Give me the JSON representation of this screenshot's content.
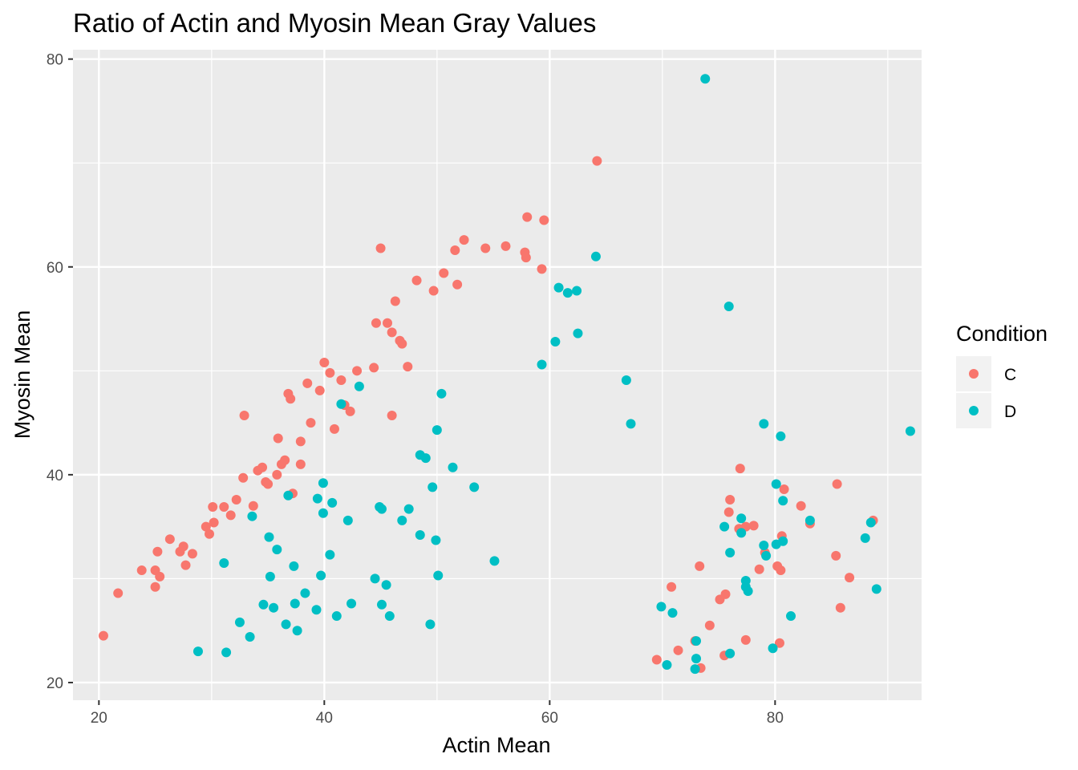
{
  "chart_data": {
    "type": "scatter",
    "title": "Ratio of Actin and Myosin Mean Gray Values",
    "xlabel": "Actin Mean",
    "ylabel": "Myosin Mean",
    "xlim": [
      17.7,
      93.0
    ],
    "ylim": [
      18.3,
      80.9
    ],
    "x_ticks": [
      20,
      40,
      60,
      80
    ],
    "x_tick_labels": [
      "20",
      "40",
      "60",
      "80"
    ],
    "y_ticks": [
      20,
      40,
      60,
      80
    ],
    "y_tick_labels": [
      "20",
      "40",
      "60",
      "80"
    ],
    "grid": true,
    "legend": {
      "title": "Condition",
      "position": "right"
    },
    "series": [
      {
        "name": "C",
        "color": "#F8766D",
        "points": [
          [
            20.4,
            24.5
          ],
          [
            21.7,
            28.6
          ],
          [
            23.8,
            30.8
          ],
          [
            25.0,
            30.8
          ],
          [
            25.0,
            29.2
          ],
          [
            25.2,
            32.6
          ],
          [
            25.4,
            30.2
          ],
          [
            26.3,
            33.8
          ],
          [
            27.2,
            32.6
          ],
          [
            27.5,
            33.1
          ],
          [
            27.7,
            31.3
          ],
          [
            28.3,
            32.4
          ],
          [
            29.5,
            35.0
          ],
          [
            29.8,
            34.3
          ],
          [
            30.1,
            36.9
          ],
          [
            30.2,
            35.4
          ],
          [
            31.1,
            36.9
          ],
          [
            31.7,
            36.1
          ],
          [
            32.2,
            37.6
          ],
          [
            32.8,
            39.7
          ],
          [
            32.9,
            45.7
          ],
          [
            33.7,
            37.0
          ],
          [
            34.1,
            40.4
          ],
          [
            34.5,
            40.7
          ],
          [
            34.8,
            39.3
          ],
          [
            35.0,
            39.1
          ],
          [
            35.8,
            40.0
          ],
          [
            35.9,
            43.5
          ],
          [
            36.2,
            41.0
          ],
          [
            36.5,
            41.4
          ],
          [
            36.8,
            47.8
          ],
          [
            37.0,
            47.3
          ],
          [
            37.2,
            38.2
          ],
          [
            37.9,
            43.2
          ],
          [
            37.9,
            41.0
          ],
          [
            38.5,
            48.8
          ],
          [
            38.8,
            45.0
          ],
          [
            39.6,
            48.1
          ],
          [
            40.0,
            50.8
          ],
          [
            40.5,
            49.8
          ],
          [
            40.9,
            44.4
          ],
          [
            41.5,
            49.1
          ],
          [
            41.8,
            46.7
          ],
          [
            42.3,
            46.1
          ],
          [
            42.9,
            50.0
          ],
          [
            44.4,
            50.3
          ],
          [
            44.6,
            54.6
          ],
          [
            45.0,
            61.8
          ],
          [
            45.6,
            54.6
          ],
          [
            46.0,
            53.7
          ],
          [
            46.0,
            45.7
          ],
          [
            46.3,
            56.7
          ],
          [
            46.7,
            52.9
          ],
          [
            46.9,
            52.6
          ],
          [
            47.4,
            50.4
          ],
          [
            48.2,
            58.7
          ],
          [
            49.7,
            57.7
          ],
          [
            50.6,
            59.4
          ],
          [
            51.6,
            61.6
          ],
          [
            51.8,
            58.3
          ],
          [
            52.4,
            62.6
          ],
          [
            54.3,
            61.8
          ],
          [
            56.1,
            62.0
          ],
          [
            57.8,
            61.4
          ],
          [
            57.9,
            60.9
          ],
          [
            58.0,
            64.8
          ],
          [
            59.3,
            59.8
          ],
          [
            59.5,
            64.5
          ],
          [
            64.2,
            70.2
          ],
          [
            69.5,
            22.2
          ],
          [
            70.8,
            29.2
          ],
          [
            71.4,
            23.1
          ],
          [
            72.9,
            24.0
          ],
          [
            73.3,
            31.2
          ],
          [
            73.4,
            21.4
          ],
          [
            74.2,
            25.5
          ],
          [
            75.1,
            28.0
          ],
          [
            75.5,
            22.6
          ],
          [
            75.6,
            28.5
          ],
          [
            75.9,
            36.4
          ],
          [
            76.0,
            37.6
          ],
          [
            76.8,
            34.8
          ],
          [
            76.9,
            40.6
          ],
          [
            77.4,
            35.0
          ],
          [
            77.4,
            24.1
          ],
          [
            78.1,
            35.1
          ],
          [
            78.6,
            30.9
          ],
          [
            79.1,
            32.5
          ],
          [
            80.2,
            31.2
          ],
          [
            80.4,
            23.8
          ],
          [
            80.5,
            30.8
          ],
          [
            80.6,
            34.1
          ],
          [
            80.8,
            38.6
          ],
          [
            82.3,
            37.0
          ],
          [
            83.1,
            35.3
          ],
          [
            85.4,
            32.2
          ],
          [
            85.5,
            39.1
          ],
          [
            85.8,
            27.2
          ],
          [
            86.6,
            30.1
          ],
          [
            88.7,
            35.6
          ]
        ]
      },
      {
        "name": "D",
        "color": "#00BFC4",
        "points": [
          [
            28.8,
            23.0
          ],
          [
            31.1,
            31.5
          ],
          [
            31.3,
            22.9
          ],
          [
            32.5,
            25.8
          ],
          [
            33.4,
            24.4
          ],
          [
            33.6,
            36.0
          ],
          [
            34.6,
            27.5
          ],
          [
            35.1,
            34.0
          ],
          [
            35.2,
            30.2
          ],
          [
            35.5,
            27.2
          ],
          [
            35.8,
            32.8
          ],
          [
            36.6,
            25.6
          ],
          [
            36.8,
            38.0
          ],
          [
            37.3,
            31.2
          ],
          [
            37.4,
            27.6
          ],
          [
            37.6,
            25.0
          ],
          [
            38.3,
            28.6
          ],
          [
            39.3,
            27.0
          ],
          [
            39.4,
            37.7
          ],
          [
            39.7,
            30.3
          ],
          [
            39.9,
            39.2
          ],
          [
            39.9,
            36.3
          ],
          [
            40.5,
            32.3
          ],
          [
            40.7,
            37.3
          ],
          [
            41.1,
            26.4
          ],
          [
            41.5,
            46.8
          ],
          [
            42.1,
            35.6
          ],
          [
            42.4,
            27.6
          ],
          [
            43.1,
            48.5
          ],
          [
            44.5,
            30.0
          ],
          [
            44.9,
            36.9
          ],
          [
            45.1,
            36.7
          ],
          [
            45.1,
            27.5
          ],
          [
            45.5,
            29.4
          ],
          [
            45.8,
            26.4
          ],
          [
            46.9,
            35.6
          ],
          [
            47.5,
            36.7
          ],
          [
            48.5,
            41.9
          ],
          [
            48.5,
            34.2
          ],
          [
            49.0,
            41.6
          ],
          [
            49.4,
            25.6
          ],
          [
            49.6,
            38.8
          ],
          [
            49.9,
            33.7
          ],
          [
            50.0,
            44.3
          ],
          [
            50.1,
            30.3
          ],
          [
            50.4,
            47.8
          ],
          [
            51.4,
            40.7
          ],
          [
            53.3,
            38.8
          ],
          [
            55.1,
            31.7
          ],
          [
            59.3,
            50.6
          ],
          [
            60.5,
            52.8
          ],
          [
            60.8,
            58.0
          ],
          [
            61.6,
            57.5
          ],
          [
            62.4,
            57.7
          ],
          [
            62.5,
            53.6
          ],
          [
            64.1,
            61.0
          ],
          [
            66.8,
            49.1
          ],
          [
            67.2,
            44.9
          ],
          [
            69.9,
            27.3
          ],
          [
            70.4,
            21.7
          ],
          [
            70.9,
            26.7
          ],
          [
            72.9,
            21.3
          ],
          [
            73.0,
            22.3
          ],
          [
            73.0,
            24.0
          ],
          [
            73.8,
            78.1
          ],
          [
            75.5,
            35.0
          ],
          [
            75.9,
            56.2
          ],
          [
            76.0,
            22.8
          ],
          [
            76.0,
            32.5
          ],
          [
            77.0,
            34.4
          ],
          [
            77.0,
            35.8
          ],
          [
            77.4,
            29.8
          ],
          [
            77.4,
            29.2
          ],
          [
            77.6,
            28.8
          ],
          [
            79.0,
            33.2
          ],
          [
            79.0,
            44.9
          ],
          [
            79.2,
            32.2
          ],
          [
            79.8,
            23.3
          ],
          [
            80.1,
            39.1
          ],
          [
            80.1,
            33.3
          ],
          [
            80.5,
            43.7
          ],
          [
            80.7,
            37.5
          ],
          [
            80.7,
            33.6
          ],
          [
            81.4,
            26.4
          ],
          [
            83.1,
            35.6
          ],
          [
            88.0,
            33.9
          ],
          [
            88.5,
            35.4
          ],
          [
            89.0,
            29.0
          ],
          [
            92.0,
            44.2
          ]
        ]
      }
    ]
  }
}
